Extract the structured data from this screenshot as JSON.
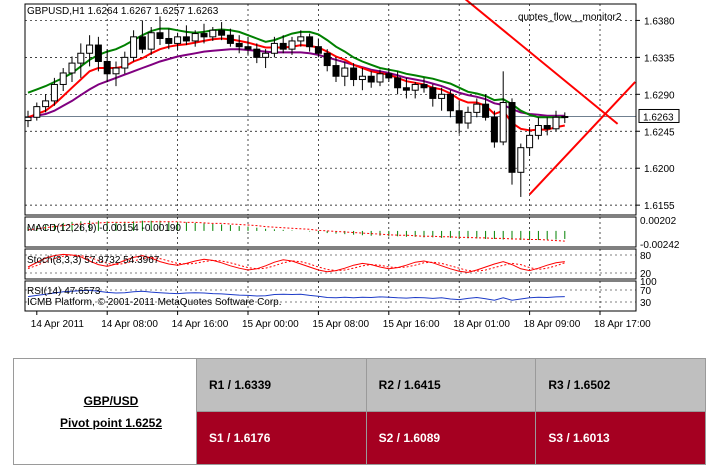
{
  "chart_data": {
    "type": "candlestick",
    "title": "GBPUSD,H1  1.6264 1.6267 1.6257 1.6263",
    "watermark": "quotes_flow__monitor2",
    "current_price": 1.6263,
    "current_price_label": "1.6263",
    "y_range": [
      1.6143,
      1.64
    ],
    "y_ticks": [
      "1.6380",
      "1.6335",
      "1.6290",
      "1.6245",
      "1.6200",
      "1.6155"
    ],
    "y_tick_values": [
      1.638,
      1.6335,
      1.629,
      1.6245,
      1.62,
      1.6155
    ],
    "x_ticks": [
      "14 Apr 2011",
      "14 Apr 08:00",
      "14 Apr 16:00",
      "15 Apr 00:00",
      "15 Apr 08:00",
      "15 Apr 16:00",
      "18 Apr 01:00",
      "18 Apr 09:00",
      "18 Apr 17:00"
    ],
    "x_tick_index": [
      1,
      9,
      17,
      25,
      33,
      41,
      49,
      57,
      65
    ],
    "candles": [
      [
        1.6258,
        1.627,
        1.625,
        1.6262
      ],
      [
        1.6262,
        1.628,
        1.6258,
        1.6275
      ],
      [
        1.6275,
        1.629,
        1.6268,
        1.6282
      ],
      [
        1.6282,
        1.631,
        1.6276,
        1.6302
      ],
      [
        1.6302,
        1.6322,
        1.6294,
        1.6316
      ],
      [
        1.6316,
        1.6336,
        1.6305,
        1.6328
      ],
      [
        1.6328,
        1.6352,
        1.631,
        1.634
      ],
      [
        1.634,
        1.6362,
        1.6324,
        1.635
      ],
      [
        1.635,
        1.636,
        1.6318,
        1.633
      ],
      [
        1.633,
        1.6345,
        1.6305,
        1.6315
      ],
      [
        1.6315,
        1.633,
        1.63,
        1.6322
      ],
      [
        1.6322,
        1.6342,
        1.6315,
        1.6335
      ],
      [
        1.6335,
        1.6368,
        1.633,
        1.636
      ],
      [
        1.636,
        1.638,
        1.634,
        1.6345
      ],
      [
        1.6345,
        1.6372,
        1.6338,
        1.6365
      ],
      [
        1.6365,
        1.6385,
        1.635,
        1.6358
      ],
      [
        1.6358,
        1.637,
        1.6345,
        1.6352
      ],
      [
        1.6352,
        1.6365,
        1.6344,
        1.636
      ],
      [
        1.636,
        1.6374,
        1.635,
        1.6355
      ],
      [
        1.6355,
        1.6368,
        1.6348,
        1.6364
      ],
      [
        1.6364,
        1.6376,
        1.6352,
        1.636
      ],
      [
        1.636,
        1.6372,
        1.6355,
        1.6368
      ],
      [
        1.6368,
        1.6378,
        1.6356,
        1.6362
      ],
      [
        1.6362,
        1.637,
        1.6348,
        1.6352
      ],
      [
        1.6352,
        1.6362,
        1.634,
        1.6348
      ],
      [
        1.6348,
        1.636,
        1.6338,
        1.6345
      ],
      [
        1.6345,
        1.6352,
        1.6328,
        1.6335
      ],
      [
        1.6335,
        1.6345,
        1.6322,
        1.634
      ],
      [
        1.634,
        1.636,
        1.6335,
        1.6352
      ],
      [
        1.6352,
        1.6362,
        1.634,
        1.6345
      ],
      [
        1.6345,
        1.636,
        1.6338,
        1.6355
      ],
      [
        1.6355,
        1.6368,
        1.6348,
        1.636
      ],
      [
        1.636,
        1.6364,
        1.6342,
        1.6348
      ],
      [
        1.6348,
        1.6358,
        1.6335,
        1.634
      ],
      [
        1.634,
        1.6345,
        1.6318,
        1.6325
      ],
      [
        1.6325,
        1.6335,
        1.6305,
        1.6312
      ],
      [
        1.6312,
        1.633,
        1.63,
        1.6322
      ],
      [
        1.6322,
        1.6328,
        1.63,
        1.6308
      ],
      [
        1.6308,
        1.6322,
        1.6295,
        1.6312
      ],
      [
        1.6312,
        1.6318,
        1.6298,
        1.6305
      ],
      [
        1.6305,
        1.632,
        1.63,
        1.6315
      ],
      [
        1.6315,
        1.6322,
        1.6305,
        1.631
      ],
      [
        1.631,
        1.6318,
        1.629,
        1.6298
      ],
      [
        1.6298,
        1.631,
        1.6285,
        1.6295
      ],
      [
        1.6295,
        1.6305,
        1.6285,
        1.6302
      ],
      [
        1.6302,
        1.631,
        1.6292,
        1.6298
      ],
      [
        1.6298,
        1.6302,
        1.6275,
        1.6285
      ],
      [
        1.6285,
        1.6298,
        1.627,
        1.629
      ],
      [
        1.629,
        1.6295,
        1.6262,
        1.627
      ],
      [
        1.627,
        1.6282,
        1.6242,
        1.6255
      ],
      [
        1.6255,
        1.6275,
        1.6248,
        1.6268
      ],
      [
        1.6268,
        1.6285,
        1.6262,
        1.6278
      ],
      [
        1.6278,
        1.629,
        1.6258,
        1.6262
      ],
      [
        1.6262,
        1.627,
        1.6225,
        1.6232
      ],
      [
        1.6232,
        1.6318,
        1.6228,
        1.628
      ],
      [
        1.628,
        1.6285,
        1.618,
        1.6195
      ],
      [
        1.6195,
        1.623,
        1.6165,
        1.6225
      ],
      [
        1.6225,
        1.625,
        1.6215,
        1.624
      ],
      [
        1.624,
        1.6262,
        1.6235,
        1.6252
      ],
      [
        1.6252,
        1.6262,
        1.624,
        1.6248
      ],
      [
        1.6248,
        1.627,
        1.6245,
        1.6262
      ],
      [
        1.6262,
        1.6268,
        1.6255,
        1.6263
      ]
    ],
    "ma_red": [
      1.6262,
      1.6266,
      1.627,
      1.6278,
      1.6288,
      1.6298,
      1.6308,
      1.6318,
      1.6322,
      1.6322,
      1.6322,
      1.6324,
      1.633,
      1.6334,
      1.634,
      1.6345,
      1.6348,
      1.635,
      1.6351,
      1.6353,
      1.6355,
      1.6357,
      1.6358,
      1.6357,
      1.6355,
      1.6353,
      1.635,
      1.6347,
      1.6347,
      1.6347,
      1.6348,
      1.635,
      1.6349,
      1.6347,
      1.6342,
      1.6336,
      1.6332,
      1.6326,
      1.6322,
      1.6318,
      1.6316,
      1.6314,
      1.631,
      1.6306,
      1.6304,
      1.6302,
      1.6298,
      1.6296,
      1.6291,
      1.6284,
      1.628,
      1.628,
      1.6276,
      1.6266,
      1.627,
      1.6255,
      1.6248,
      1.6246,
      1.6247,
      1.6247,
      1.625,
      1.6252
    ],
    "ma_green": [
      1.6292,
      1.6296,
      1.63,
      1.6305,
      1.631,
      1.6316,
      1.6324,
      1.6332,
      1.6338,
      1.6342,
      1.6345,
      1.635,
      1.6356,
      1.6362,
      1.6367,
      1.637,
      1.637,
      1.6368,
      1.6366,
      1.6365,
      1.6366,
      1.6368,
      1.6369,
      1.6368,
      1.6366,
      1.6362,
      1.6358,
      1.6354,
      1.6356,
      1.636,
      1.6364,
      1.6366,
      1.6366,
      1.6363,
      1.6356,
      1.6348,
      1.6342,
      1.6335,
      1.633,
      1.6326,
      1.6322,
      1.632,
      1.6318,
      1.6315,
      1.6313,
      1.6311,
      1.6309,
      1.6306,
      1.6303,
      1.6298,
      1.6293,
      1.6291,
      1.6288,
      1.6283,
      1.6284,
      1.6278,
      1.627,
      1.6265,
      1.6262,
      1.6262,
      1.6262,
      1.6262
    ],
    "ma_purple": [
      1.6262,
      1.6264,
      1.6266,
      1.627,
      1.6276,
      1.6282,
      1.6289,
      1.6296,
      1.6302,
      1.6306,
      1.631,
      1.6314,
      1.6318,
      1.6322,
      1.6326,
      1.633,
      1.6333,
      1.6336,
      1.6338,
      1.634,
      1.6342,
      1.6343,
      1.6344,
      1.6345,
      1.6345,
      1.6344,
      1.6343,
      1.6342,
      1.6341,
      1.6341,
      1.6341,
      1.6341,
      1.634,
      1.6338,
      1.6335,
      1.6332,
      1.6329,
      1.6326,
      1.6323,
      1.632,
      1.6318,
      1.6316,
      1.6313,
      1.631,
      1.6308,
      1.6306,
      1.6303,
      1.63,
      1.6296,
      1.6292,
      1.6289,
      1.6287,
      1.6284,
      1.6279,
      1.6277,
      1.6272,
      1.6268,
      1.6266,
      1.6265,
      1.6264,
      1.6264,
      1.6264
    ],
    "trendlines": [
      {
        "color": "#ff0000",
        "from": [
          49,
          1.6412
        ],
        "to": [
          67,
          1.6254
        ]
      },
      {
        "color": "#ff0000",
        "from": [
          57,
          1.6168
        ],
        "to": [
          69,
          1.6305
        ]
      }
    ],
    "hline": 1.6263,
    "macd": {
      "label": "MACD(12,26,9) -0.00154 -0.00190",
      "ticks": [
        "0.00202",
        "-0.00242"
      ],
      "tick_values": [
        0.00202,
        -0.00242
      ],
      "range": [
        -0.003,
        0.0026
      ],
      "hist": [
        0.0008,
        0.0009,
        0.0011,
        0.0013,
        0.0015,
        0.0017,
        0.0018,
        0.0019,
        0.0019,
        0.0018,
        0.0017,
        0.0017,
        0.0018,
        0.0019,
        0.0019,
        0.0019,
        0.0018,
        0.0017,
        0.0016,
        0.0015,
        0.0014,
        0.0013,
        0.0012,
        0.0011,
        0.0009,
        0.0008,
        0.0006,
        0.0004,
        0.0003,
        0.0002,
        0.0001,
        0.0,
        -0.0001,
        -0.0002,
        -0.0004,
        -0.0005,
        -0.0006,
        -0.0007,
        -0.0008,
        -0.0009,
        -0.0009,
        -0.001,
        -0.001,
        -0.0011,
        -0.0011,
        -0.0012,
        -0.0012,
        -0.0013,
        -0.0013,
        -0.0014,
        -0.0014,
        -0.0014,
        -0.0015,
        -0.0015,
        -0.0016,
        -0.0016,
        -0.0017,
        -0.0017,
        -0.0017,
        -0.0016,
        -0.0016,
        -0.0015
      ],
      "signal": [
        0.0002,
        0.0004,
        0.0006,
        0.0008,
        0.001,
        0.0012,
        0.0013,
        0.0014,
        0.0015,
        0.0016,
        0.0016,
        0.0016,
        0.0016,
        0.0017,
        0.0017,
        0.0017,
        0.0017,
        0.0017,
        0.0016,
        0.0016,
        0.0015,
        0.0014,
        0.0014,
        0.0013,
        0.0012,
        0.0011,
        0.001,
        0.0008,
        0.0007,
        0.0006,
        0.0005,
        0.0004,
        0.0003,
        0.0001,
        0.0,
        -0.0001,
        -0.0002,
        -0.0003,
        -0.0004,
        -0.0005,
        -0.0006,
        -0.0007,
        -0.0008,
        -0.0008,
        -0.0009,
        -0.001,
        -0.001,
        -0.0011,
        -0.0011,
        -0.0012,
        -0.0012,
        -0.0013,
        -0.0013,
        -0.0014,
        -0.0014,
        -0.0015,
        -0.0015,
        -0.0016,
        -0.0016,
        -0.0017,
        -0.0018,
        -0.0019
      ]
    },
    "stoch": {
      "label": "Stoch(8,3,3) 57.8732 54.3967",
      "ticks": [
        "80",
        "20"
      ],
      "tick_values": [
        80,
        20
      ],
      "range": [
        0,
        100
      ],
      "main": [
        40,
        55,
        70,
        78,
        82,
        80,
        74,
        60,
        48,
        42,
        50,
        62,
        72,
        78,
        70,
        58,
        50,
        46,
        52,
        60,
        66,
        62,
        54,
        44,
        36,
        30,
        34,
        44,
        56,
        64,
        60,
        50,
        40,
        30,
        24,
        28,
        36,
        46,
        52,
        48,
        40,
        34,
        38,
        46,
        56,
        60,
        54,
        44,
        34,
        26,
        22,
        30,
        40,
        50,
        58,
        48,
        34,
        28,
        36,
        46,
        54,
        58
      ],
      "signal": [
        35,
        45,
        58,
        68,
        76,
        80,
        78,
        72,
        62,
        52,
        48,
        52,
        60,
        68,
        72,
        68,
        60,
        52,
        50,
        52,
        58,
        62,
        60,
        54,
        46,
        38,
        34,
        36,
        44,
        54,
        60,
        58,
        50,
        40,
        32,
        28,
        30,
        36,
        44,
        48,
        46,
        40,
        38,
        40,
        46,
        54,
        56,
        52,
        44,
        36,
        28,
        26,
        30,
        38,
        46,
        52,
        48,
        38,
        32,
        36,
        44,
        54
      ]
    },
    "rsi": {
      "label": "RSI(14) 47.6573",
      "ticks": [
        "100",
        "70",
        "30"
      ],
      "tick_values": [
        100,
        70,
        30
      ],
      "range": [
        0,
        100
      ],
      "values": [
        48,
        52,
        56,
        60,
        64,
        66,
        68,
        69,
        66,
        62,
        60,
        61,
        64,
        66,
        63,
        61,
        59,
        58,
        60,
        61,
        60,
        58,
        57,
        55,
        53,
        52,
        50,
        51,
        55,
        56,
        55,
        56,
        52,
        49,
        45,
        44,
        46,
        44,
        46,
        45,
        47,
        46,
        44,
        43,
        45,
        44,
        42,
        44,
        40,
        38,
        42,
        45,
        41,
        36,
        44,
        36,
        40,
        44,
        46,
        45,
        47,
        48
      ]
    },
    "footer": "ICMB Platform, © 2001-2011 MetaQuotes Software Corp."
  },
  "pivot_table": {
    "pair": "GBP/USD",
    "pivot": "Pivot point 1.6252",
    "r1": "R1 / 1.6339",
    "r2": "R2 / 1.6415",
    "r3": "R3 / 1.6502",
    "s1": "S1 / 1.6176",
    "s2": "S2 / 1.6089",
    "s3": "S3 / 1.6013"
  },
  "colors": {
    "bull": "#ffffff",
    "bear": "#000000",
    "ma_red": "#ff0000",
    "ma_green": "#008000",
    "ma_purple": "#800080",
    "trend": "#ff0000",
    "resistance_bg": "#bfbfbf",
    "support_bg": "#a50021"
  }
}
